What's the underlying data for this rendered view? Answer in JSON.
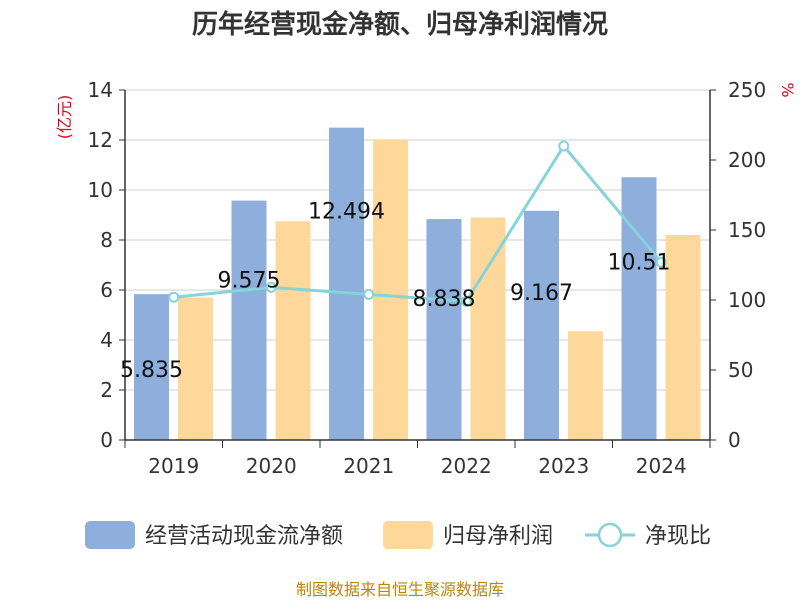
{
  "chart_data": {
    "type": "bar",
    "title": "历年经营现金净额、归母净利润情况",
    "left_unit": "(亿元)",
    "right_unit": "%",
    "categories": [
      "2019",
      "2020",
      "2021",
      "2022",
      "2023",
      "2024"
    ],
    "left_axis": {
      "min": 0,
      "max": 14,
      "ticks": [
        0,
        2,
        4,
        6,
        8,
        10,
        12,
        14
      ]
    },
    "right_axis": {
      "min": 0,
      "max": 250,
      "ticks": [
        0,
        50,
        100,
        150,
        200,
        250
      ]
    },
    "series": [
      {
        "name": "经营活动现金流净额",
        "type": "bar",
        "axis": "left",
        "color": "#8eaedb",
        "values": [
          5.835,
          9.575,
          12.494,
          8.838,
          9.167,
          10.51
        ],
        "labels": [
          "5.835",
          "9.575",
          "12.494",
          "8.838",
          "9.167",
          "10.51"
        ]
      },
      {
        "name": "归母净利润",
        "type": "bar",
        "axis": "left",
        "color": "#fdd89a",
        "values": [
          5.7,
          8.75,
          12.0,
          8.9,
          4.35,
          8.2
        ]
      },
      {
        "name": "净现比",
        "type": "line",
        "axis": "right",
        "color": "#86d3d9",
        "values": [
          102,
          109,
          104,
          99,
          210,
          127
        ]
      }
    ],
    "grid": true,
    "legend_position": "bottom"
  },
  "source": "制图数据来自恒生聚源数据库"
}
